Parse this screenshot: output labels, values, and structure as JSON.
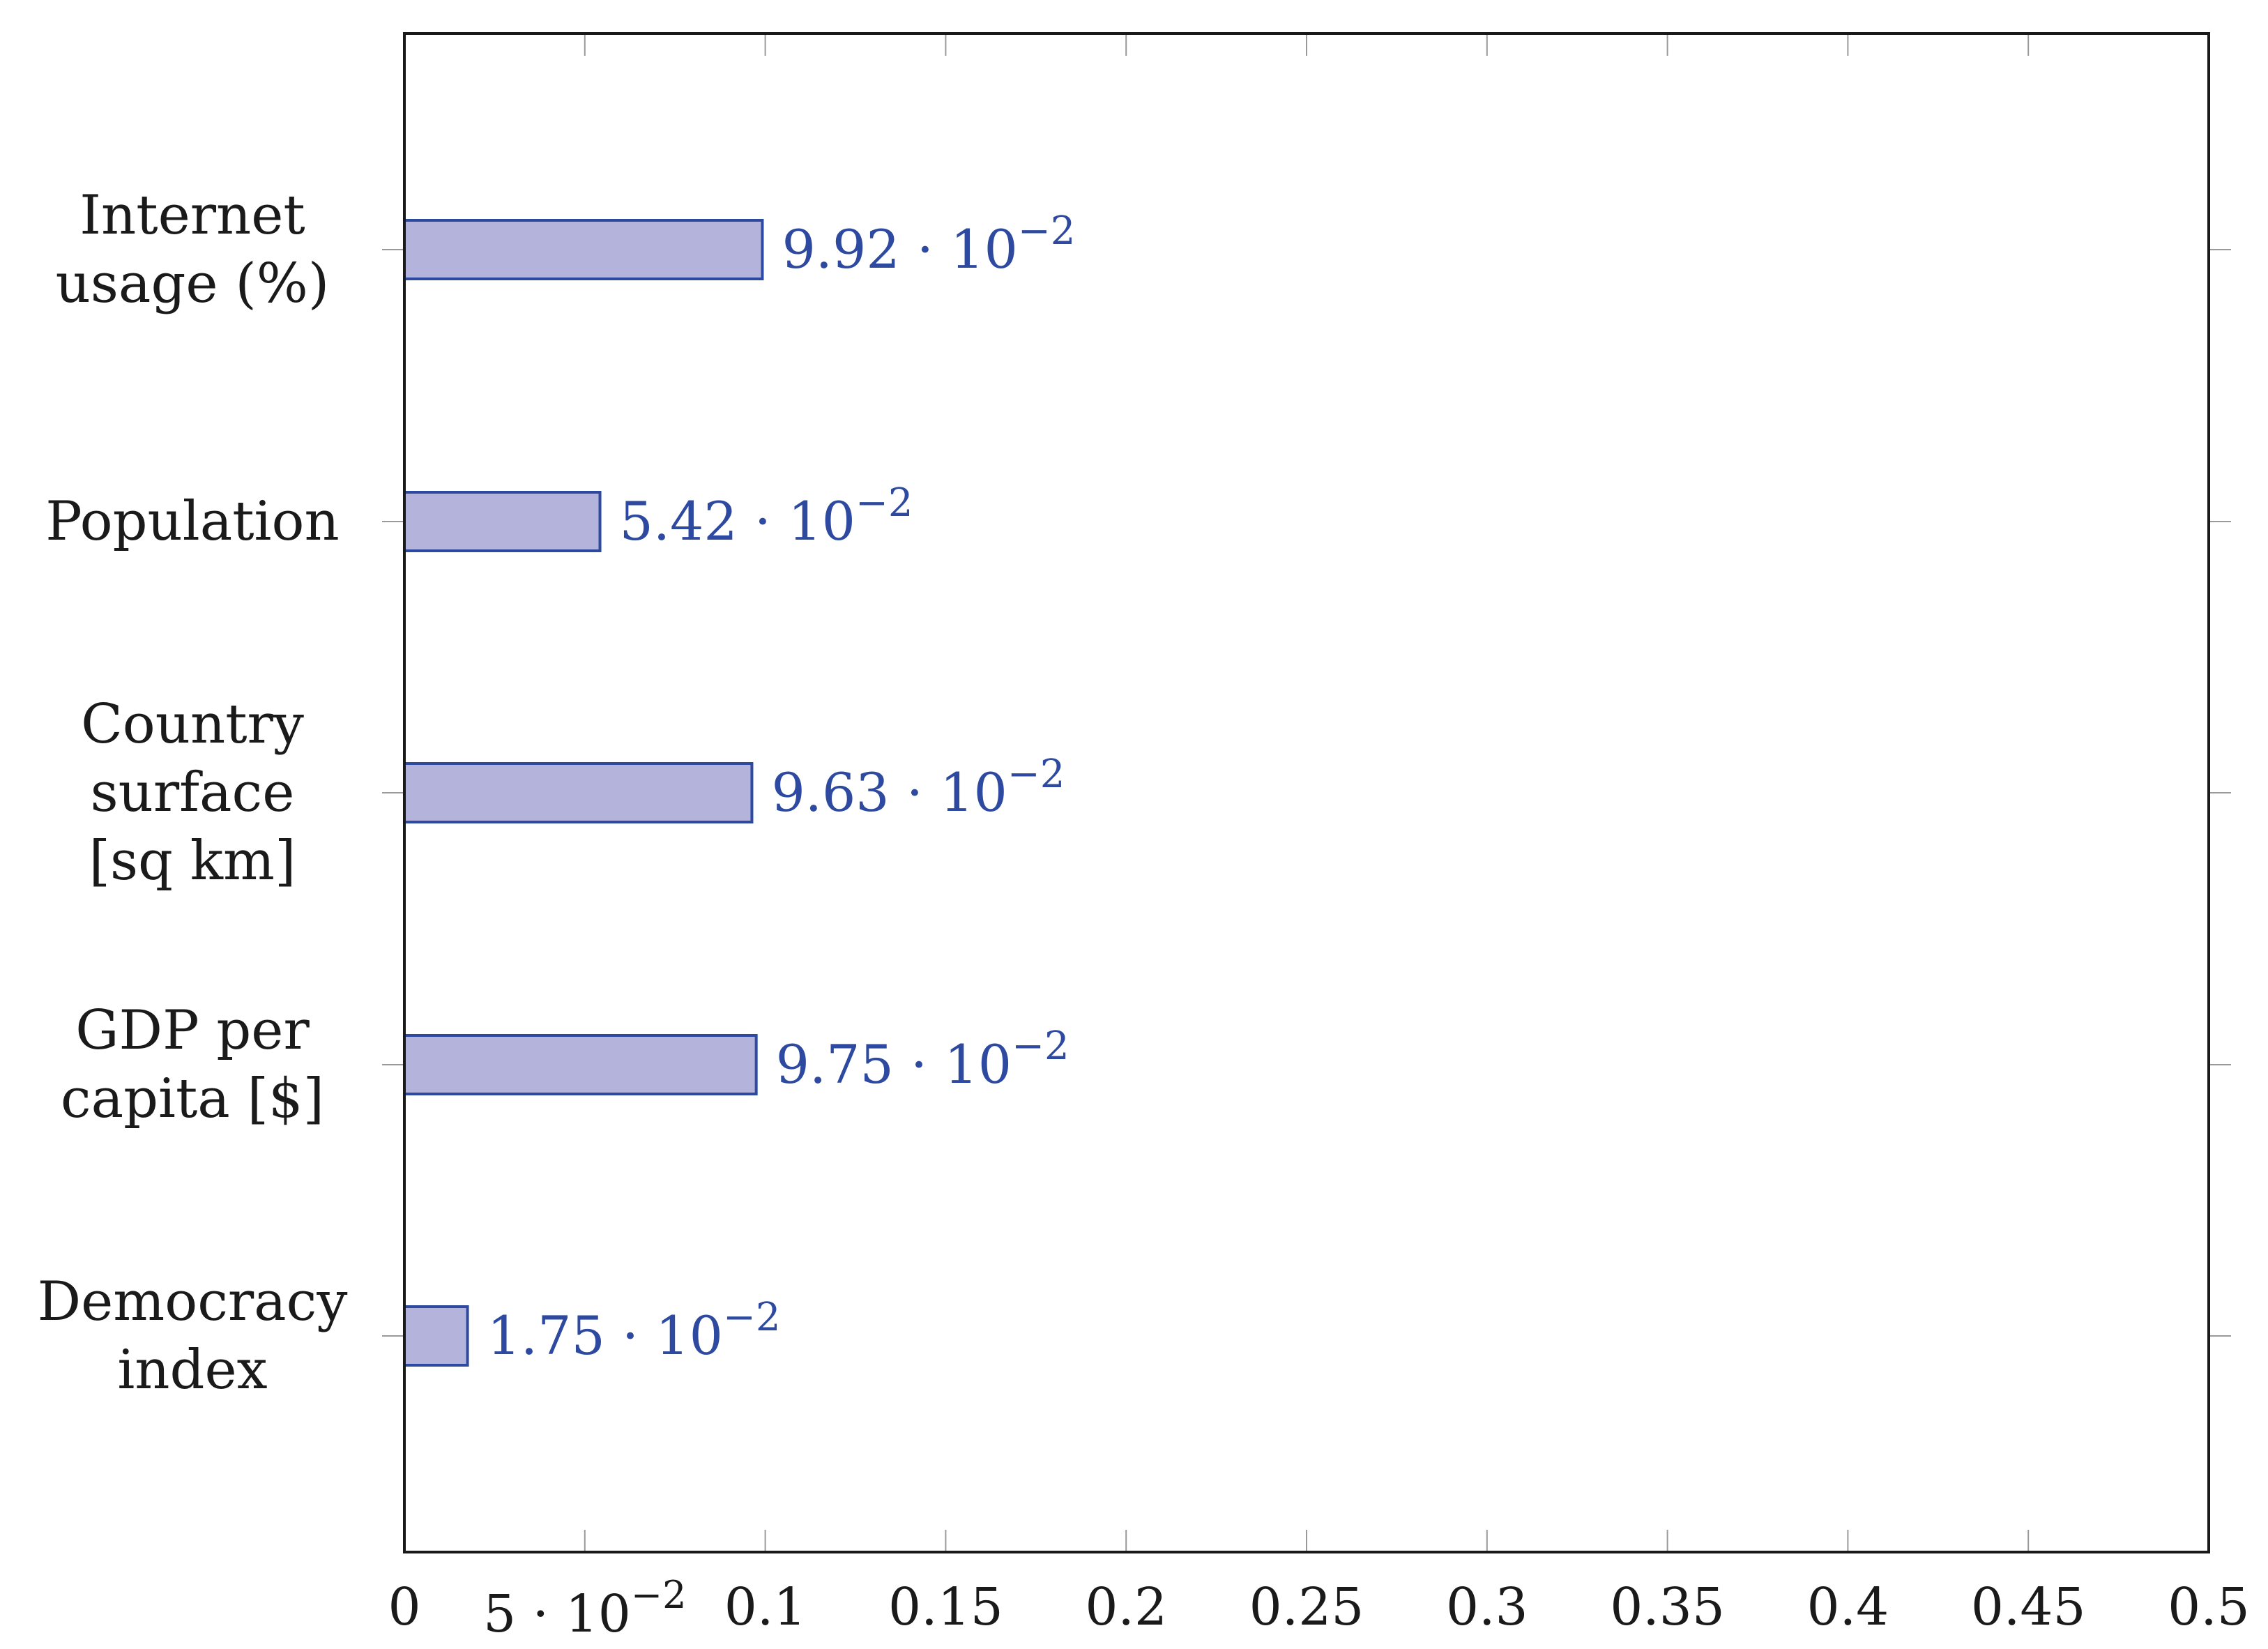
{
  "chart_data": {
    "type": "bar",
    "orientation": "horizontal",
    "categories": [
      [
        "Internet",
        "usage (%)"
      ],
      [
        "Population"
      ],
      [
        "Country",
        "surface",
        "[sq km]"
      ],
      [
        "GDP per",
        "capita [$]"
      ],
      [
        "Democracy",
        "index"
      ]
    ],
    "values": [
      0.0992,
      0.0542,
      0.0963,
      0.0975,
      0.0175
    ],
    "data_labels": [
      {
        "mantissa": "9.92",
        "exponent": "−2"
      },
      {
        "mantissa": "5.42",
        "exponent": "−2"
      },
      {
        "mantissa": "9.63",
        "exponent": "−2"
      },
      {
        "mantissa": "9.75",
        "exponent": "−2"
      },
      {
        "mantissa": "1.75",
        "exponent": "−2"
      }
    ],
    "xlim": [
      0,
      0.5
    ],
    "xticks": [
      0,
      0.05,
      0.1,
      0.15,
      0.2,
      0.25,
      0.3,
      0.35,
      0.4,
      0.45,
      0.5
    ],
    "xtick_labels": [
      {
        "text": "0"
      },
      {
        "mantissa": "5",
        "exponent": "−2"
      },
      {
        "text": "0.1"
      },
      {
        "text": "0.15"
      },
      {
        "text": "0.2"
      },
      {
        "text": "0.25"
      },
      {
        "text": "0.3"
      },
      {
        "text": "0.35"
      },
      {
        "text": "0.4"
      },
      {
        "text": "0.45"
      },
      {
        "text": "0.5"
      }
    ],
    "title": "",
    "xlabel": "",
    "ylabel": "",
    "grid": false,
    "colors": {
      "bar_fill": "#b3b3dc",
      "bar_stroke": "#2e4aa0",
      "label": "#2e4aa0",
      "axis": "#1a1a1a"
    }
  }
}
